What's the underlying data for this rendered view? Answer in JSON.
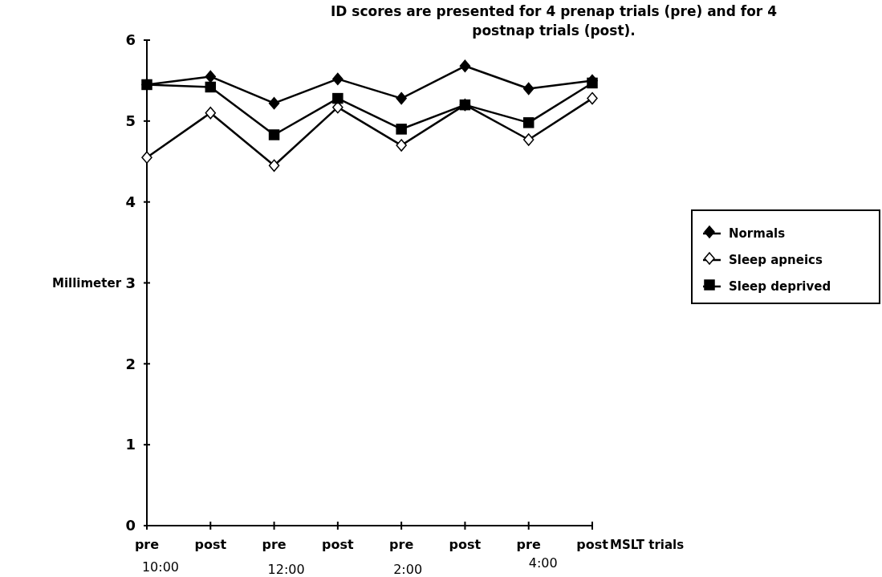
{
  "chart_data": {
    "type": "line",
    "title": "ID scores are presented for 4 prenap trials (pre) and for 4 postnap trials (post).",
    "xlabel": "MSLT trials",
    "ylabel": "Millimeter",
    "categories": [
      "pre",
      "post",
      "pre",
      "post",
      "pre",
      "post",
      "pre",
      "post"
    ],
    "annotations": [
      "10:00",
      "12:00",
      "2:00",
      "4:00"
    ],
    "ylim": [
      0,
      6
    ],
    "yticks": [
      0,
      1,
      2,
      3,
      4,
      5,
      6
    ],
    "legend": "right",
    "grid": false,
    "series": [
      {
        "name": "Normals",
        "color": "#000000",
        "marker": "diamond",
        "values": [
          5.45,
          5.55,
          5.22,
          5.52,
          5.28,
          5.68,
          5.4,
          5.5
        ]
      },
      {
        "name": "Sleep apneics",
        "color": "#000000",
        "marker": "diamond",
        "values": [
          4.55,
          5.1,
          4.45,
          5.17,
          4.7,
          5.2,
          4.77,
          5.28
        ]
      },
      {
        "name": "Sleep deprived",
        "color": "#000000",
        "marker": "square",
        "values": [
          5.45,
          5.42,
          4.83,
          5.28,
          4.9,
          5.2,
          4.98,
          5.47
        ]
      }
    ]
  }
}
